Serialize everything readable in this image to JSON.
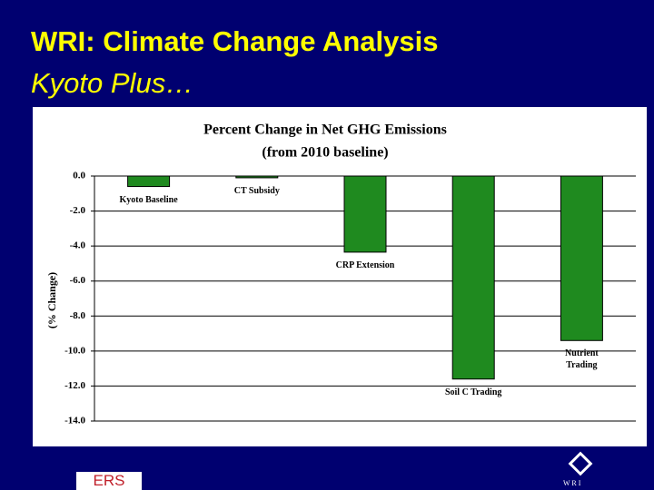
{
  "slide": {
    "title": "WRI: Climate Change Analysis",
    "subtitle": "Kyoto Plus…"
  },
  "chart_data": {
    "type": "bar",
    "title": "Percent Change in Net GHG Emissions",
    "subtitle": "(from 2010 baseline)",
    "y_label": "(% Change)",
    "categories": [
      "Kyoto Baseline",
      "CT Subsidy",
      "CRP Extension",
      "Soil C Trading",
      "Nutrient Trading"
    ],
    "values": [
      -0.6,
      -0.1,
      -4.35,
      -11.6,
      -9.4
    ],
    "color": "#1f8a1f",
    "ylim": [
      -14,
      0
    ],
    "yticks": [
      {
        "value": 0,
        "label": "0.0"
      },
      {
        "value": -2,
        "label": "-2.0"
      },
      {
        "value": -4,
        "label": "-4.0"
      },
      {
        "value": -6,
        "label": "-6.0"
      },
      {
        "value": -8,
        "label": "-8.0"
      },
      {
        "value": -10,
        "label": "-10.0"
      },
      {
        "value": -12,
        "label": "-12.0"
      },
      {
        "value": -14,
        "label": "-14.0"
      }
    ],
    "grid": true
  },
  "logos": {
    "left": "ERS",
    "right": "W R I"
  }
}
